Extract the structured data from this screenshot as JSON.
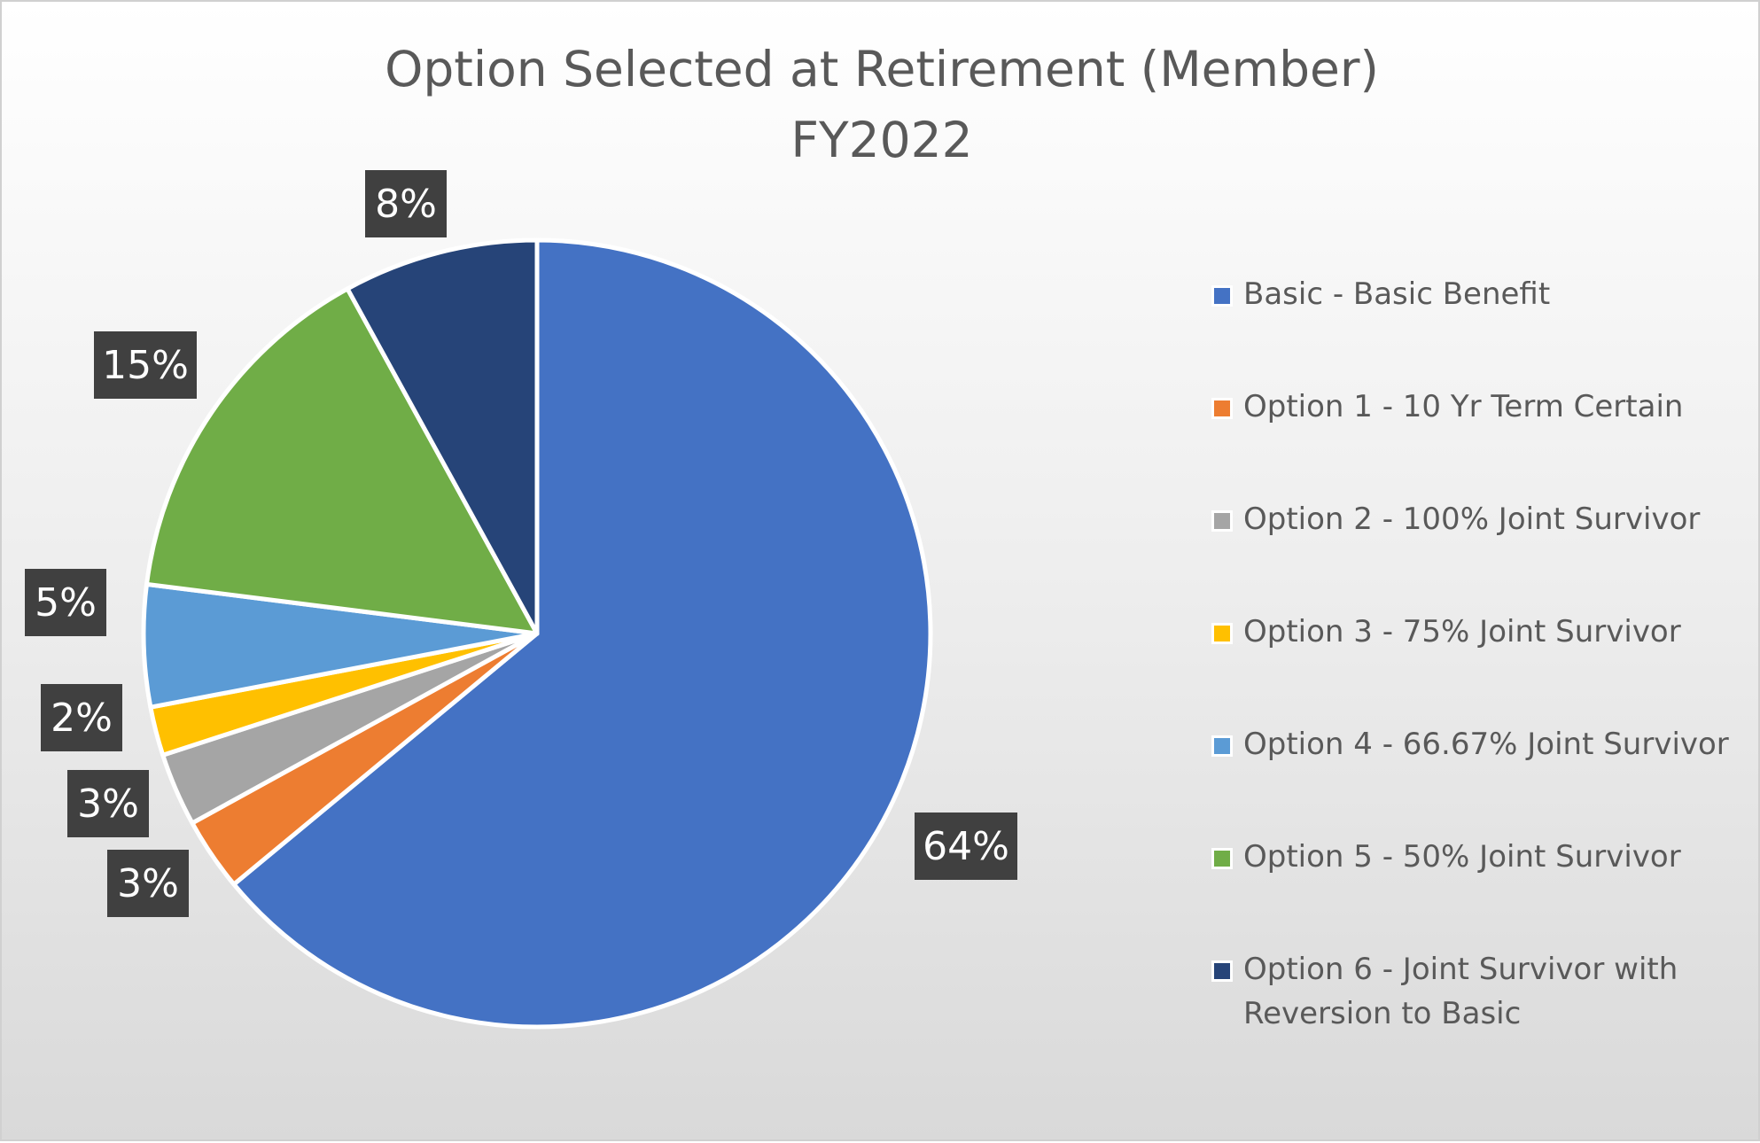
{
  "chart_data": {
    "type": "pie",
    "title": [
      "Option Selected at Retirement (Member)",
      "FY2022"
    ],
    "legend_position": "right",
    "slices": [
      {
        "name": "Basic - Basic Benefit",
        "value": 64,
        "label": "64%",
        "color": "#4472C4"
      },
      {
        "name": "Option 1 - 10 Yr Term Certain",
        "value": 3,
        "label": "3%",
        "color": "#ED7D31"
      },
      {
        "name": "Option 2 - 100% Joint Survivor",
        "value": 3,
        "label": "3%",
        "color": "#A5A5A5"
      },
      {
        "name": "Option 3 - 75% Joint Survivor",
        "value": 2,
        "label": "2%",
        "color": "#FFC000"
      },
      {
        "name": "Option 4 - 66.67% Joint Survivor",
        "value": 5,
        "label": "5%",
        "color": "#5B9BD5"
      },
      {
        "name": "Option 5 - 50% Joint Survivor",
        "value": 15,
        "label": "15%",
        "color": "#70AD47"
      },
      {
        "name": "Option 6 - Joint Survivor with Reversion to Basic",
        "value": 8,
        "label": "8%",
        "color": "#264478"
      }
    ]
  }
}
